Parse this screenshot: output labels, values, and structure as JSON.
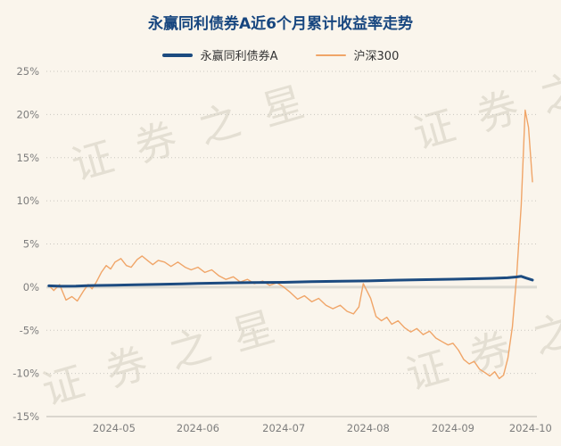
{
  "page": {
    "title": "永赢同利债券A近6个月累计收益率走势",
    "watermark": "证券之星",
    "background_color": "#faf5ec",
    "title_color": "#17467f"
  },
  "chart_data": {
    "type": "line",
    "title": "永赢同利债券A近6个月累计收益率走势",
    "xlabel": "",
    "ylabel": "",
    "ylim": [
      -15,
      25
    ],
    "yticks": [
      25,
      20,
      15,
      10,
      5,
      0,
      -5,
      -10,
      -15
    ],
    "ytick_suffix": "%",
    "grid": "horizontal-dotted",
    "legend_position": "top",
    "xticks": [
      {
        "label": "2024-05",
        "pos": 0.138
      },
      {
        "label": "2024-06",
        "pos": 0.309
      },
      {
        "label": "2024-07",
        "pos": 0.484
      },
      {
        "label": "2024-08",
        "pos": 0.656
      },
      {
        "label": "2024-09",
        "pos": 0.829
      },
      {
        "label": "2024-10",
        "pos": 0.987
      }
    ],
    "series": [
      {
        "name": "永赢同利债券A",
        "color": "#1c4b80",
        "width": 3,
        "points": [
          [
            0.005,
            0.15
          ],
          [
            0.03,
            0.1
          ],
          [
            0.06,
            0.12
          ],
          [
            0.09,
            0.18
          ],
          [
            0.138,
            0.22
          ],
          [
            0.18,
            0.28
          ],
          [
            0.23,
            0.33
          ],
          [
            0.275,
            0.38
          ],
          [
            0.309,
            0.42
          ],
          [
            0.36,
            0.48
          ],
          [
            0.42,
            0.52
          ],
          [
            0.484,
            0.56
          ],
          [
            0.54,
            0.63
          ],
          [
            0.6,
            0.68
          ],
          [
            0.656,
            0.72
          ],
          [
            0.71,
            0.8
          ],
          [
            0.76,
            0.86
          ],
          [
            0.829,
            0.92
          ],
          [
            0.87,
            0.97
          ],
          [
            0.91,
            1.02
          ],
          [
            0.94,
            1.08
          ],
          [
            0.958,
            1.18
          ],
          [
            0.968,
            1.25
          ],
          [
            0.978,
            1.05
          ],
          [
            0.991,
            0.82
          ]
        ]
      },
      {
        "name": "沪深300",
        "color": "#f0a568",
        "width": 1.4,
        "points": [
          [
            0.005,
            0.2
          ],
          [
            0.015,
            -0.4
          ],
          [
            0.027,
            0.3
          ],
          [
            0.04,
            -1.5
          ],
          [
            0.052,
            -1.1
          ],
          [
            0.063,
            -1.6
          ],
          [
            0.075,
            -0.5
          ],
          [
            0.085,
            0.3
          ],
          [
            0.093,
            -0.2
          ],
          [
            0.102,
            0.6
          ],
          [
            0.112,
            1.7
          ],
          [
            0.122,
            2.5
          ],
          [
            0.131,
            2.1
          ],
          [
            0.14,
            2.9
          ],
          [
            0.152,
            3.3
          ],
          [
            0.163,
            2.5
          ],
          [
            0.173,
            2.3
          ],
          [
            0.185,
            3.2
          ],
          [
            0.195,
            3.6
          ],
          [
            0.206,
            3.1
          ],
          [
            0.217,
            2.6
          ],
          [
            0.228,
            3.1
          ],
          [
            0.241,
            2.9
          ],
          [
            0.254,
            2.4
          ],
          [
            0.268,
            2.9
          ],
          [
            0.283,
            2.3
          ],
          [
            0.295,
            2.0
          ],
          [
            0.309,
            2.3
          ],
          [
            0.323,
            1.7
          ],
          [
            0.337,
            2.0
          ],
          [
            0.352,
            1.3
          ],
          [
            0.366,
            0.9
          ],
          [
            0.381,
            1.2
          ],
          [
            0.395,
            0.6
          ],
          [
            0.41,
            0.9
          ],
          [
            0.424,
            0.4
          ],
          [
            0.441,
            0.7
          ],
          [
            0.455,
            0.2
          ],
          [
            0.47,
            0.5
          ],
          [
            0.484,
            0.0
          ],
          [
            0.497,
            -0.6
          ],
          [
            0.512,
            -1.4
          ],
          [
            0.526,
            -1.0
          ],
          [
            0.541,
            -1.7
          ],
          [
            0.555,
            -1.3
          ],
          [
            0.57,
            -2.1
          ],
          [
            0.584,
            -2.5
          ],
          [
            0.599,
            -2.1
          ],
          [
            0.613,
            -2.8
          ],
          [
            0.626,
            -3.1
          ],
          [
            0.637,
            -2.3
          ],
          [
            0.646,
            0.4
          ],
          [
            0.654,
            -0.5
          ],
          [
            0.661,
            -1.3
          ],
          [
            0.672,
            -3.4
          ],
          [
            0.683,
            -3.9
          ],
          [
            0.694,
            -3.5
          ],
          [
            0.704,
            -4.3
          ],
          [
            0.717,
            -3.9
          ],
          [
            0.73,
            -4.7
          ],
          [
            0.743,
            -5.2
          ],
          [
            0.755,
            -4.8
          ],
          [
            0.768,
            -5.5
          ],
          [
            0.781,
            -5.1
          ],
          [
            0.794,
            -5.9
          ],
          [
            0.806,
            -6.3
          ],
          [
            0.819,
            -6.7
          ],
          [
            0.829,
            -6.5
          ],
          [
            0.84,
            -7.3
          ],
          [
            0.851,
            -8.4
          ],
          [
            0.862,
            -8.9
          ],
          [
            0.872,
            -8.6
          ],
          [
            0.883,
            -9.5
          ],
          [
            0.894,
            -9.9
          ],
          [
            0.904,
            -10.3
          ],
          [
            0.914,
            -9.8
          ],
          [
            0.923,
            -10.6
          ],
          [
            0.932,
            -10.2
          ],
          [
            0.941,
            -8.2
          ],
          [
            0.95,
            -4.6
          ],
          [
            0.959,
            1.5
          ],
          [
            0.968,
            9.5
          ],
          [
            0.976,
            20.5
          ],
          [
            0.983,
            18.5
          ],
          [
            0.991,
            12.2
          ]
        ]
      }
    ]
  }
}
